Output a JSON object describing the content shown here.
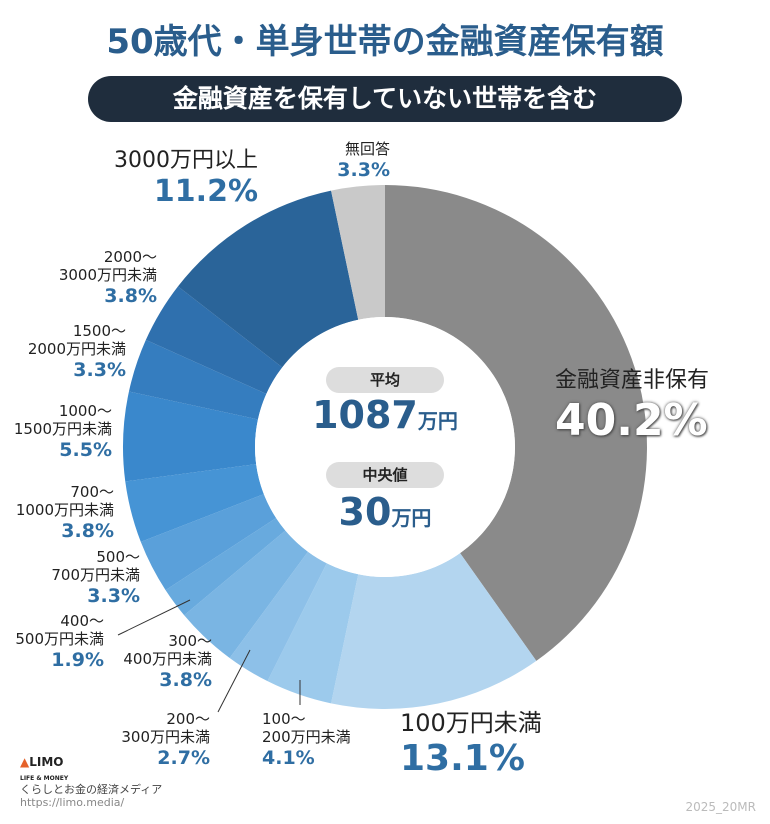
{
  "title": "50歳代・単身世帯の金融資産保有額",
  "subtitle": "金融資産を保有していない世帯を含む",
  "center": {
    "avg_label": "平均",
    "avg_value": "1087",
    "avg_unit": "万円",
    "median_label": "中央値",
    "median_value": "30",
    "median_unit": "万円"
  },
  "chart_data": {
    "type": "pie",
    "donut": true,
    "categories": [
      "金融資産非保有",
      "100万円未満",
      "100〜200万円未満",
      "200〜300万円未満",
      "300〜400万円未満",
      "400〜500万円未満",
      "500〜700万円未満",
      "700〜1000万円未満",
      "1000〜1500万円未満",
      "1500〜2000万円未満",
      "2000〜3000万円未満",
      "3000万円以上",
      "無回答"
    ],
    "values": [
      40.2,
      13.1,
      4.1,
      2.7,
      3.8,
      1.9,
      3.3,
      3.8,
      5.5,
      3.3,
      3.8,
      11.2,
      3.3
    ],
    "value_labels": [
      "40.2%",
      "13.1%",
      "4.1%",
      "2.7%",
      "3.8%",
      "1.9%",
      "3.3%",
      "3.8%",
      "5.5%",
      "3.3%",
      "3.8%",
      "11.2%",
      "3.3%"
    ],
    "colors": [
      "#8a8a8a",
      "#b3d5ef",
      "#9ccaec",
      "#8dc0e8",
      "#7ab5e3",
      "#68aade",
      "#5aa0da",
      "#4694d5",
      "#3a88cc",
      "#357dbf",
      "#2f70ae",
      "#2a6499",
      "#c9c9c9"
    ],
    "label_lines": [
      [
        "金融資産非保有"
      ],
      [
        "100万円未満"
      ],
      [
        "100〜",
        "200万円未満"
      ],
      [
        "200〜",
        "300万円未満"
      ],
      [
        "300〜",
        "400万円未満"
      ],
      [
        "400〜",
        "500万円未満"
      ],
      [
        "500〜",
        "700万円未満"
      ],
      [
        "700〜",
        "1000万円未満"
      ],
      [
        "1000〜",
        "1500万円未満"
      ],
      [
        "1500〜",
        "2000万円未満"
      ],
      [
        "2000〜",
        "3000万円未満"
      ],
      [
        "3000万円以上"
      ],
      [
        "無回答"
      ]
    ]
  },
  "footer": {
    "logo": "LIMO",
    "logo_sub": "LIFE & MONEY",
    "tagline": "くらしとお金の経済メディア",
    "url": "https://limo.media/",
    "code": "2025_20MR"
  }
}
